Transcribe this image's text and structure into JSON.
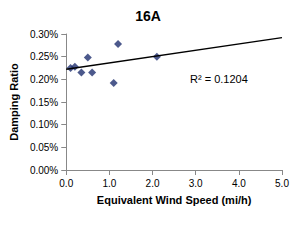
{
  "chart_data": {
    "type": "scatter",
    "title": "16A",
    "x_label": "Equivalent Wind Speed (mi/h)",
    "y_label": "Damping Ratio",
    "xlim": [
      0,
      5
    ],
    "xticks": [
      {
        "value": 0,
        "label": "0.0"
      },
      {
        "value": 1,
        "label": "1.0"
      },
      {
        "value": 2,
        "label": "2.0"
      },
      {
        "value": 3,
        "label": "3.0"
      },
      {
        "value": 4,
        "label": "4.0"
      },
      {
        "value": 5,
        "label": "5.0"
      }
    ],
    "ylim": [
      0,
      0.3
    ],
    "yticks": [
      {
        "value": 0,
        "label": "0.00%"
      },
      {
        "value": 0.05,
        "label": "0.05%"
      },
      {
        "value": 0.1,
        "label": "0.10%"
      },
      {
        "value": 0.15,
        "label": "0.15%"
      },
      {
        "value": 0.2,
        "label": "0.20%"
      },
      {
        "value": 0.25,
        "label": "0.25%"
      },
      {
        "value": 0.3,
        "label": "0.30%"
      }
    ],
    "grid": false,
    "annotations": [
      "R² = 0.1204"
    ],
    "series": [
      {
        "type": "scatter",
        "marker": "diamond",
        "color": "#1f2f6f",
        "x": [
          0.1,
          0.2,
          0.35,
          0.5,
          0.6,
          1.1,
          1.2,
          2.1
        ],
        "values": [
          0.225,
          0.228,
          0.215,
          0.248,
          0.215,
          0.192,
          0.278,
          0.25
        ]
      },
      {
        "type": "line",
        "color": "#000000",
        "line_style": "solid",
        "x": [
          0,
          5
        ],
        "values": [
          0.222,
          0.292
        ]
      }
    ]
  }
}
